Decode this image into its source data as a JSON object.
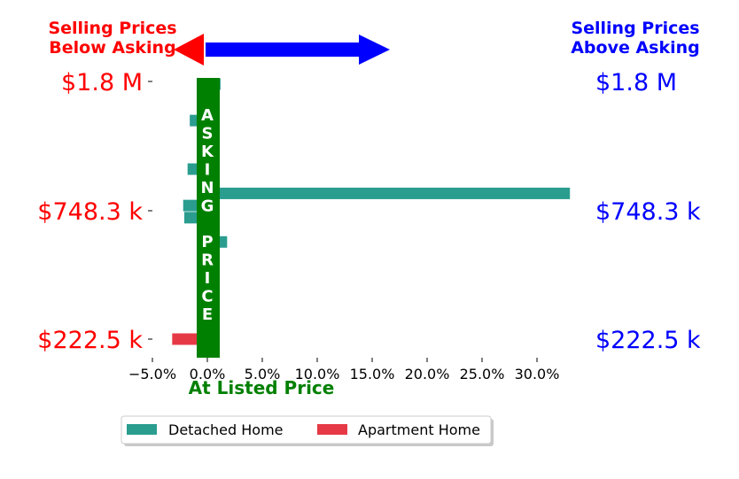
{
  "chart_data": {
    "type": "bar",
    "orientation": "horizontal",
    "header_left": [
      "Selling Prices",
      "Below Asking"
    ],
    "header_right": [
      "Selling Prices",
      "Above Asking"
    ],
    "header_left_color": "#ff0000",
    "header_right_color": "#0000ff",
    "xlabel": "At Listed Price",
    "center_band_text": "ASKING PRICE",
    "center_band_color": "#008000",
    "price_labels": [
      {
        "text": "$1.8 M",
        "y": 1800000
      },
      {
        "text": "$748.3 k",
        "y": 748300
      },
      {
        "text": "$222.5 k",
        "y": 222500
      }
    ],
    "xlim": [
      -5.5,
      33
    ],
    "x_ticks": [
      -5,
      0,
      5,
      10,
      15,
      20,
      25,
      30
    ],
    "x_tick_labels": [
      "−5.0%",
      "0.0%",
      "5.0%",
      "10.0%",
      "15.0%",
      "20.0%",
      "25.0%",
      "30.0%"
    ],
    "series": [
      {
        "name": "Detached Home",
        "color": "#2a9d8f",
        "values": [
          0.0,
          0.0,
          0.0,
          0.0,
          0.0,
          0.0,
          0.0,
          0.0,
          1.8,
          0.9,
          -2.1,
          -2.2,
          33.0,
          0.0,
          -1.8,
          0.0,
          0.0,
          0.0,
          -1.6,
          0.0,
          1.0,
          1.2
        ]
      },
      {
        "name": "Apartment Home",
        "color": "#e63946",
        "values": [
          -3.2,
          0,
          0,
          0,
          0,
          0,
          0,
          0,
          0,
          0,
          0,
          0,
          0,
          0,
          0,
          0,
          0,
          0,
          0,
          0,
          0,
          0
        ]
      }
    ],
    "legend": {
      "position": "bottom-center",
      "entries": [
        "Detached Home",
        "Apartment Home"
      ]
    },
    "grid": false
  }
}
